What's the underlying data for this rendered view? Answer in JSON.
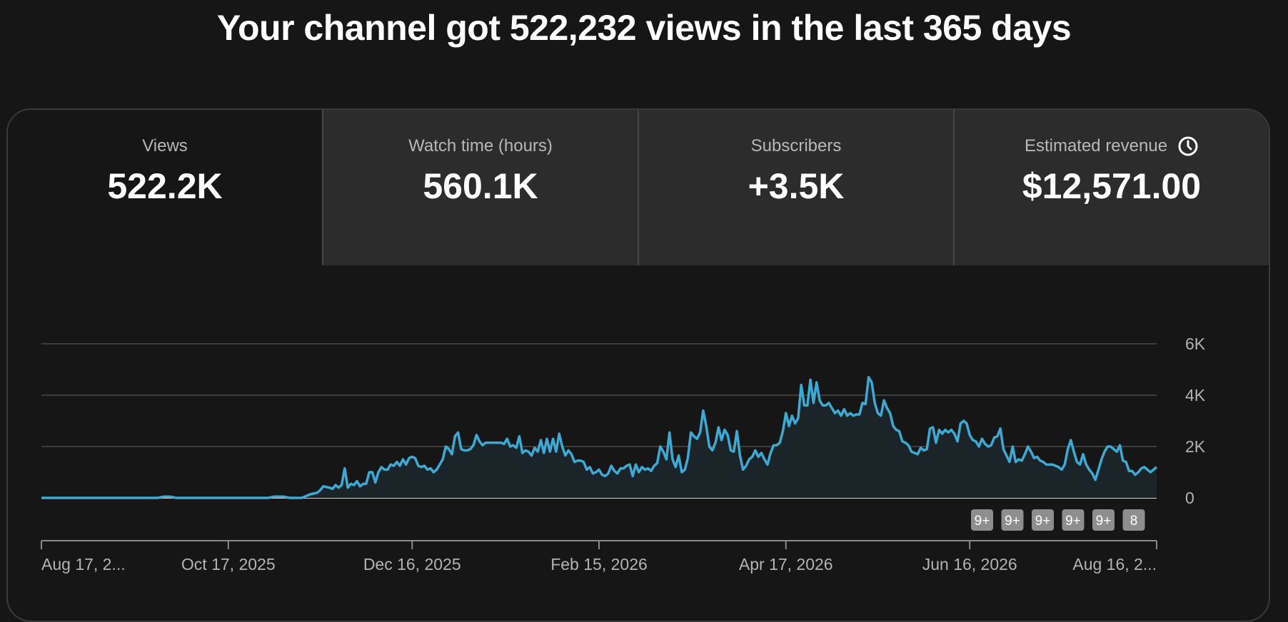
{
  "headline": "Your channel got 522,232 views in the last 365 days",
  "tabs": [
    {
      "label": "Views",
      "value": "522.2K",
      "active": true
    },
    {
      "label": "Watch time (hours)",
      "value": "560.1K",
      "active": false
    },
    {
      "label": "Subscribers",
      "value": "+3.5K",
      "active": false
    },
    {
      "label": "Estimated revenue",
      "value": "$12,571.00",
      "active": false,
      "icon": "clock-icon"
    }
  ],
  "colors": {
    "background": "#161616",
    "tab_inactive": "#2c2c2c",
    "line": "#3eaad4",
    "area": "#1b2529",
    "grid": "#4a4a4a",
    "marker": "#8e8e8e"
  },
  "event_markers": [
    "9+",
    "9+",
    "9+",
    "9+",
    "9+",
    "8"
  ],
  "chart_data": {
    "type": "area",
    "title": "",
    "xlabel": "",
    "ylabel": "",
    "ylim": [
      0,
      6000
    ],
    "y_ticks": [
      "0",
      "2K",
      "4K",
      "6K"
    ],
    "y_tick_values": [
      0,
      2000,
      4000,
      6000
    ],
    "x_ticks": [
      "Aug 17, 2...",
      "Oct 17, 2025",
      "Dec 16, 2025",
      "Feb 15, 2026",
      "Apr 17, 2026",
      "Jun 16, 2026",
      "Aug 16, 2..."
    ],
    "x_tick_days": [
      0,
      61,
      121,
      182,
      243,
      303,
      364
    ],
    "grid": true,
    "legend": "none",
    "series": [
      {
        "points": [
          [
            0,
            0
          ],
          [
            10,
            0
          ],
          [
            20,
            0
          ],
          [
            30,
            0
          ],
          [
            38,
            0
          ],
          [
            40,
            50
          ],
          [
            42,
            50
          ],
          [
            44,
            0
          ],
          [
            55,
            0
          ],
          [
            65,
            0
          ],
          [
            74,
            0
          ],
          [
            76,
            50
          ],
          [
            79,
            50
          ],
          [
            81,
            0
          ],
          [
            83,
            0
          ],
          [
            85,
            0
          ],
          [
            86,
            50
          ],
          [
            87,
            100
          ],
          [
            88,
            150
          ],
          [
            90,
            200
          ],
          [
            91,
            300
          ],
          [
            92,
            450
          ],
          [
            94,
            400
          ],
          [
            95,
            350
          ],
          [
            96,
            500
          ],
          [
            97,
            400
          ],
          [
            98,
            500
          ],
          [
            99,
            1150
          ],
          [
            100,
            400
          ],
          [
            101,
            550
          ],
          [
            102,
            500
          ],
          [
            103,
            650
          ],
          [
            104,
            450
          ],
          [
            105,
            550
          ],
          [
            106,
            550
          ],
          [
            107,
            1000
          ],
          [
            108,
            1000
          ],
          [
            109,
            600
          ],
          [
            110,
            1000
          ],
          [
            111,
            1200
          ],
          [
            112,
            1100
          ],
          [
            113,
            1100
          ],
          [
            114,
            1300
          ],
          [
            115,
            1250
          ],
          [
            116,
            1400
          ],
          [
            117,
            1250
          ],
          [
            118,
            1500
          ],
          [
            119,
            1300
          ],
          [
            120,
            1550
          ],
          [
            121,
            1600
          ],
          [
            122,
            1550
          ],
          [
            123,
            1250
          ],
          [
            124,
            1200
          ],
          [
            125,
            1250
          ],
          [
            126,
            1100
          ],
          [
            127,
            1150
          ],
          [
            128,
            1000
          ],
          [
            129,
            1100
          ],
          [
            130,
            1300
          ],
          [
            131,
            1500
          ],
          [
            132,
            2000
          ],
          [
            133,
            1900
          ],
          [
            134,
            1700
          ],
          [
            135,
            2400
          ],
          [
            136,
            2550
          ],
          [
            137,
            1900
          ],
          [
            138,
            1850
          ],
          [
            139,
            1850
          ],
          [
            140,
            1900
          ],
          [
            141,
            2050
          ],
          [
            142,
            2450
          ],
          [
            143,
            2200
          ],
          [
            144,
            2050
          ],
          [
            145,
            2150
          ],
          [
            146,
            2150
          ],
          [
            148,
            2150
          ],
          [
            150,
            2150
          ],
          [
            151,
            2100
          ],
          [
            152,
            2300
          ],
          [
            153,
            2000
          ],
          [
            154,
            2050
          ],
          [
            155,
            1950
          ],
          [
            156,
            2400
          ],
          [
            157,
            1750
          ],
          [
            158,
            1850
          ],
          [
            159,
            1800
          ],
          [
            160,
            1650
          ],
          [
            161,
            1950
          ],
          [
            162,
            1800
          ],
          [
            163,
            2250
          ],
          [
            164,
            1750
          ],
          [
            165,
            2300
          ],
          [
            166,
            1800
          ],
          [
            167,
            2300
          ],
          [
            168,
            1800
          ],
          [
            169,
            2500
          ],
          [
            170,
            2000
          ],
          [
            171,
            1650
          ],
          [
            172,
            1850
          ],
          [
            173,
            1700
          ],
          [
            174,
            1400
          ],
          [
            175,
            1450
          ],
          [
            176,
            1450
          ],
          [
            177,
            1400
          ],
          [
            178,
            1100
          ],
          [
            179,
            1200
          ],
          [
            180,
            950
          ],
          [
            181,
            1000
          ],
          [
            182,
            1100
          ],
          [
            183,
            900
          ],
          [
            184,
            850
          ],
          [
            185,
            950
          ],
          [
            186,
            1250
          ],
          [
            187,
            1050
          ],
          [
            188,
            950
          ],
          [
            189,
            1150
          ],
          [
            190,
            1150
          ],
          [
            191,
            1250
          ],
          [
            192,
            1300
          ],
          [
            193,
            850
          ],
          [
            194,
            1300
          ],
          [
            195,
            1000
          ],
          [
            196,
            1200
          ],
          [
            197,
            1100
          ],
          [
            198,
            1150
          ],
          [
            199,
            1050
          ],
          [
            200,
            1250
          ],
          [
            201,
            1350
          ],
          [
            202,
            2000
          ],
          [
            203,
            1800
          ],
          [
            204,
            1500
          ],
          [
            205,
            2550
          ],
          [
            206,
            1500
          ],
          [
            207,
            1200
          ],
          [
            208,
            1650
          ],
          [
            209,
            1000
          ],
          [
            210,
            1100
          ],
          [
            211,
            1550
          ],
          [
            212,
            2550
          ],
          [
            213,
            2400
          ],
          [
            214,
            2300
          ],
          [
            215,
            2550
          ],
          [
            216,
            3400
          ],
          [
            217,
            2800
          ],
          [
            218,
            2000
          ],
          [
            219,
            1850
          ],
          [
            220,
            2150
          ],
          [
            221,
            2750
          ],
          [
            222,
            2250
          ],
          [
            223,
            2650
          ],
          [
            224,
            2450
          ],
          [
            225,
            1850
          ],
          [
            226,
            1800
          ],
          [
            227,
            2600
          ],
          [
            228,
            1650
          ],
          [
            229,
            1100
          ],
          [
            230,
            1250
          ],
          [
            231,
            1500
          ],
          [
            232,
            1600
          ],
          [
            233,
            1850
          ],
          [
            234,
            1600
          ],
          [
            235,
            1750
          ],
          [
            236,
            1500
          ],
          [
            237,
            1300
          ],
          [
            238,
            1750
          ],
          [
            239,
            2050
          ],
          [
            240,
            2050
          ],
          [
            241,
            2150
          ],
          [
            242,
            2600
          ],
          [
            243,
            3300
          ],
          [
            244,
            2800
          ],
          [
            245,
            3200
          ],
          [
            246,
            2900
          ],
          [
            247,
            3100
          ],
          [
            248,
            4400
          ],
          [
            249,
            3600
          ],
          [
            250,
            3600
          ],
          [
            251,
            4600
          ],
          [
            252,
            3700
          ],
          [
            253,
            4500
          ],
          [
            254,
            3800
          ],
          [
            255,
            3600
          ],
          [
            256,
            3600
          ],
          [
            257,
            3700
          ],
          [
            258,
            3500
          ],
          [
            259,
            3300
          ],
          [
            260,
            3400
          ],
          [
            261,
            3200
          ],
          [
            262,
            3450
          ],
          [
            263,
            3200
          ],
          [
            264,
            3300
          ],
          [
            265,
            3200
          ],
          [
            266,
            3250
          ],
          [
            267,
            3250
          ],
          [
            268,
            3700
          ],
          [
            269,
            3650
          ],
          [
            270,
            4700
          ],
          [
            271,
            4500
          ],
          [
            272,
            3700
          ],
          [
            273,
            3300
          ],
          [
            274,
            3200
          ],
          [
            275,
            3800
          ],
          [
            276,
            3500
          ],
          [
            277,
            3300
          ],
          [
            278,
            2800
          ],
          [
            279,
            2650
          ],
          [
            280,
            2600
          ],
          [
            281,
            2200
          ],
          [
            282,
            2150
          ],
          [
            283,
            2050
          ],
          [
            284,
            1800
          ],
          [
            285,
            1750
          ],
          [
            286,
            1700
          ],
          [
            287,
            1950
          ],
          [
            288,
            1850
          ],
          [
            289,
            1900
          ],
          [
            290,
            2700
          ],
          [
            291,
            2750
          ],
          [
            292,
            2150
          ],
          [
            293,
            2650
          ],
          [
            294,
            2500
          ],
          [
            295,
            2650
          ],
          [
            296,
            2550
          ],
          [
            297,
            2650
          ],
          [
            298,
            2500
          ],
          [
            299,
            2200
          ],
          [
            300,
            2900
          ],
          [
            301,
            3000
          ],
          [
            302,
            2900
          ],
          [
            303,
            2450
          ],
          [
            304,
            2250
          ],
          [
            305,
            2200
          ],
          [
            306,
            2000
          ],
          [
            307,
            2300
          ],
          [
            308,
            2100
          ],
          [
            309,
            2000
          ],
          [
            310,
            2050
          ],
          [
            311,
            2350
          ],
          [
            312,
            2400
          ],
          [
            313,
            2700
          ],
          [
            314,
            1900
          ],
          [
            315,
            1650
          ],
          [
            316,
            1400
          ],
          [
            317,
            2000
          ],
          [
            318,
            1400
          ],
          [
            319,
            1500
          ],
          [
            320,
            1450
          ],
          [
            321,
            1700
          ],
          [
            322,
            2000
          ],
          [
            323,
            1800
          ],
          [
            324,
            1550
          ],
          [
            325,
            1600
          ],
          [
            326,
            1450
          ],
          [
            327,
            1400
          ],
          [
            328,
            1300
          ],
          [
            329,
            1300
          ],
          [
            330,
            1300
          ],
          [
            331,
            1250
          ],
          [
            332,
            1200
          ],
          [
            333,
            1100
          ],
          [
            334,
            1300
          ],
          [
            335,
            1900
          ],
          [
            336,
            2250
          ],
          [
            337,
            1800
          ],
          [
            338,
            1400
          ],
          [
            339,
            1300
          ],
          [
            340,
            1700
          ],
          [
            341,
            1300
          ],
          [
            342,
            1100
          ],
          [
            343,
            950
          ],
          [
            344,
            700
          ],
          [
            345,
            1100
          ],
          [
            346,
            1500
          ],
          [
            347,
            1800
          ],
          [
            348,
            2000
          ],
          [
            349,
            2000
          ],
          [
            350,
            1900
          ],
          [
            351,
            1800
          ],
          [
            352,
            2050
          ],
          [
            353,
            1450
          ],
          [
            354,
            1400
          ],
          [
            355,
            1050
          ],
          [
            356,
            1050
          ],
          [
            357,
            900
          ],
          [
            358,
            1000
          ],
          [
            359,
            1150
          ],
          [
            360,
            1200
          ],
          [
            361,
            1100
          ],
          [
            362,
            1000
          ],
          [
            363,
            1100
          ],
          [
            364,
            1200
          ]
        ]
      }
    ]
  }
}
